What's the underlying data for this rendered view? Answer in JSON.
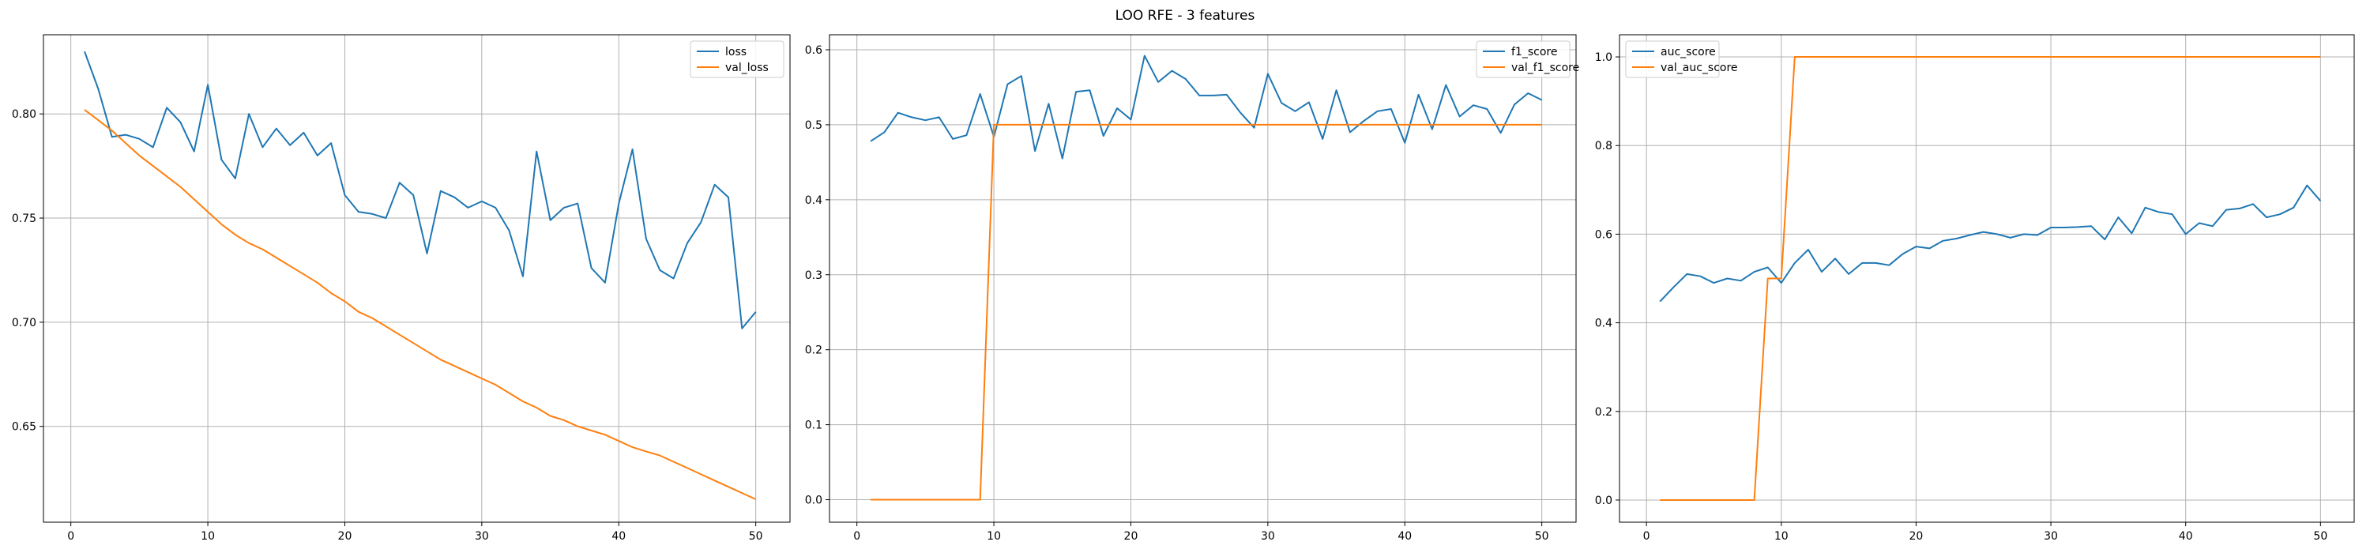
{
  "figure": {
    "title": "LOO RFE - 3 features"
  },
  "colors": {
    "series1": "#1f77b4",
    "series2": "#ff7f0e",
    "grid": "#b0b0b0",
    "axis": "#000000"
  },
  "chart_data": [
    {
      "type": "line",
      "title": "",
      "xlabel": "",
      "ylabel": "",
      "xlim": [
        -2,
        52.5
      ],
      "ylim": [
        0.604,
        0.838
      ],
      "xticks": [
        0,
        10,
        20,
        30,
        40,
        50
      ],
      "yticks": [
        0.65,
        0.7,
        0.75,
        0.8
      ],
      "ytick_labels": [
        "0.65",
        "0.70",
        "0.75",
        "0.80"
      ],
      "grid": true,
      "legend": "top-right",
      "series": [
        {
          "name": "loss",
          "x": [
            1,
            2,
            3,
            4,
            5,
            6,
            7,
            8,
            9,
            10,
            11,
            12,
            13,
            14,
            15,
            16,
            17,
            18,
            19,
            20,
            21,
            22,
            23,
            24,
            25,
            26,
            27,
            28,
            29,
            30,
            31,
            32,
            33,
            34,
            35,
            36,
            37,
            38,
            39,
            40,
            41,
            42,
            43,
            44,
            45,
            46,
            47,
            48,
            49,
            50
          ],
          "values": [
            0.83,
            0.812,
            0.789,
            0.79,
            0.788,
            0.784,
            0.803,
            0.796,
            0.782,
            0.814,
            0.778,
            0.769,
            0.8,
            0.784,
            0.793,
            0.785,
            0.791,
            0.78,
            0.786,
            0.761,
            0.753,
            0.752,
            0.75,
            0.767,
            0.761,
            0.733,
            0.763,
            0.76,
            0.755,
            0.758,
            0.755,
            0.744,
            0.722,
            0.782,
            0.749,
            0.755,
            0.757,
            0.726,
            0.719,
            0.757,
            0.783,
            0.74,
            0.725,
            0.721,
            0.738,
            0.748,
            0.766,
            0.76,
            0.697,
            0.705
          ]
        },
        {
          "name": "val_loss",
          "x": [
            1,
            2,
            3,
            4,
            5,
            6,
            7,
            8,
            9,
            10,
            11,
            12,
            13,
            14,
            15,
            16,
            17,
            18,
            19,
            20,
            21,
            22,
            23,
            24,
            25,
            26,
            27,
            28,
            29,
            30,
            31,
            32,
            33,
            34,
            35,
            36,
            37,
            38,
            39,
            40,
            41,
            42,
            43,
            44,
            45,
            46,
            47,
            48,
            49,
            50
          ],
          "values": [
            0.802,
            0.797,
            0.792,
            0.786,
            0.78,
            0.775,
            0.77,
            0.765,
            0.759,
            0.753,
            0.747,
            0.742,
            0.738,
            0.735,
            0.731,
            0.727,
            0.723,
            0.719,
            0.714,
            0.71,
            0.705,
            0.702,
            0.698,
            0.694,
            0.69,
            0.686,
            0.682,
            0.679,
            0.676,
            0.673,
            0.67,
            0.666,
            0.662,
            0.659,
            0.655,
            0.653,
            0.65,
            0.648,
            0.646,
            0.643,
            0.64,
            0.638,
            0.636,
            0.633,
            0.63,
            0.627,
            0.624,
            0.621,
            0.618,
            0.615
          ]
        }
      ]
    },
    {
      "type": "line",
      "title": "",
      "xlabel": "",
      "ylabel": "",
      "xlim": [
        -2,
        52.5
      ],
      "ylim": [
        -0.03,
        0.62
      ],
      "xticks": [
        0,
        10,
        20,
        30,
        40,
        50
      ],
      "yticks": [
        0.0,
        0.1,
        0.2,
        0.3,
        0.4,
        0.5,
        0.6
      ],
      "ytick_labels": [
        "0.0",
        "0.1",
        "0.2",
        "0.3",
        "0.4",
        "0.5",
        "0.6"
      ],
      "grid": true,
      "legend": "top-right",
      "series": [
        {
          "name": "f1_score",
          "x": [
            1,
            2,
            3,
            4,
            5,
            6,
            7,
            8,
            9,
            10,
            11,
            12,
            13,
            14,
            15,
            16,
            17,
            18,
            19,
            20,
            21,
            22,
            23,
            24,
            25,
            26,
            27,
            28,
            29,
            30,
            31,
            32,
            33,
            34,
            35,
            36,
            37,
            38,
            39,
            40,
            41,
            42,
            43,
            44,
            45,
            46,
            47,
            48,
            49,
            50
          ],
          "values": [
            0.478,
            0.49,
            0.516,
            0.51,
            0.506,
            0.51,
            0.481,
            0.486,
            0.541,
            0.484,
            0.554,
            0.565,
            0.465,
            0.528,
            0.455,
            0.544,
            0.546,
            0.485,
            0.522,
            0.507,
            0.592,
            0.557,
            0.572,
            0.561,
            0.539,
            0.539,
            0.54,
            0.516,
            0.496,
            0.568,
            0.529,
            0.518,
            0.53,
            0.481,
            0.546,
            0.49,
            0.505,
            0.518,
            0.521,
            0.476,
            0.54,
            0.494,
            0.553,
            0.511,
            0.526,
            0.521,
            0.489,
            0.527,
            0.542,
            0.533
          ]
        },
        {
          "name": "val_f1_score",
          "x": [
            1,
            2,
            3,
            4,
            5,
            6,
            7,
            8,
            9,
            10,
            11,
            12,
            13,
            14,
            15,
            16,
            17,
            18,
            19,
            20,
            21,
            22,
            23,
            24,
            25,
            26,
            27,
            28,
            29,
            30,
            31,
            32,
            33,
            34,
            35,
            36,
            37,
            38,
            39,
            40,
            41,
            42,
            43,
            44,
            45,
            46,
            47,
            48,
            49,
            50
          ],
          "values": [
            0,
            0,
            0,
            0,
            0,
            0,
            0,
            0,
            0,
            0.5,
            0.5,
            0.5,
            0.5,
            0.5,
            0.5,
            0.5,
            0.5,
            0.5,
            0.5,
            0.5,
            0.5,
            0.5,
            0.5,
            0.5,
            0.5,
            0.5,
            0.5,
            0.5,
            0.5,
            0.5,
            0.5,
            0.5,
            0.5,
            0.5,
            0.5,
            0.5,
            0.5,
            0.5,
            0.5,
            0.5,
            0.5,
            0.5,
            0.5,
            0.5,
            0.5,
            0.5,
            0.5,
            0.5,
            0.5,
            0.5
          ]
        }
      ]
    },
    {
      "type": "line",
      "title": "",
      "xlabel": "",
      "ylabel": "",
      "xlim": [
        -2,
        52.5
      ],
      "ylim": [
        -0.05,
        1.05
      ],
      "xticks": [
        0,
        10,
        20,
        30,
        40,
        50
      ],
      "yticks": [
        0.0,
        0.2,
        0.4,
        0.6,
        0.8,
        1.0
      ],
      "ytick_labels": [
        "0.0",
        "0.2",
        "0.4",
        "0.6",
        "0.8",
        "1.0"
      ],
      "grid": true,
      "legend": "top-left",
      "series": [
        {
          "name": "auc_score",
          "x": [
            1,
            2,
            3,
            4,
            5,
            6,
            7,
            8,
            9,
            10,
            11,
            12,
            13,
            14,
            15,
            16,
            17,
            18,
            19,
            20,
            21,
            22,
            23,
            24,
            25,
            26,
            27,
            28,
            29,
            30,
            31,
            32,
            33,
            34,
            35,
            36,
            37,
            38,
            39,
            40,
            41,
            42,
            43,
            44,
            45,
            46,
            47,
            48,
            49,
            50
          ],
          "values": [
            0.448,
            0.48,
            0.51,
            0.505,
            0.49,
            0.5,
            0.495,
            0.515,
            0.525,
            0.49,
            0.535,
            0.565,
            0.515,
            0.545,
            0.51,
            0.535,
            0.535,
            0.53,
            0.555,
            0.572,
            0.568,
            0.585,
            0.59,
            0.598,
            0.605,
            0.6,
            0.592,
            0.6,
            0.598,
            0.615,
            0.615,
            0.616,
            0.618,
            0.588,
            0.638,
            0.602,
            0.66,
            0.65,
            0.645,
            0.6,
            0.625,
            0.618,
            0.655,
            0.658,
            0.668,
            0.638,
            0.645,
            0.66,
            0.71,
            0.675
          ]
        },
        {
          "name": "val_auc_score",
          "x": [
            1,
            2,
            3,
            4,
            5,
            6,
            7,
            8,
            9,
            10,
            11,
            12,
            13,
            14,
            15,
            16,
            17,
            18,
            19,
            20,
            21,
            22,
            23,
            24,
            25,
            26,
            27,
            28,
            29,
            30,
            31,
            32,
            33,
            34,
            35,
            36,
            37,
            38,
            39,
            40,
            41,
            42,
            43,
            44,
            45,
            46,
            47,
            48,
            49,
            50
          ],
          "values": [
            0,
            0,
            0,
            0,
            0,
            0,
            0,
            0,
            0.5,
            0.5,
            1,
            1,
            1,
            1,
            1,
            1,
            1,
            1,
            1,
            1,
            1,
            1,
            1,
            1,
            1,
            1,
            1,
            1,
            1,
            1,
            1,
            1,
            1,
            1,
            1,
            1,
            1,
            1,
            1,
            1,
            1,
            1,
            1,
            1,
            1,
            1,
            1,
            1,
            1,
            1
          ]
        }
      ]
    }
  ]
}
